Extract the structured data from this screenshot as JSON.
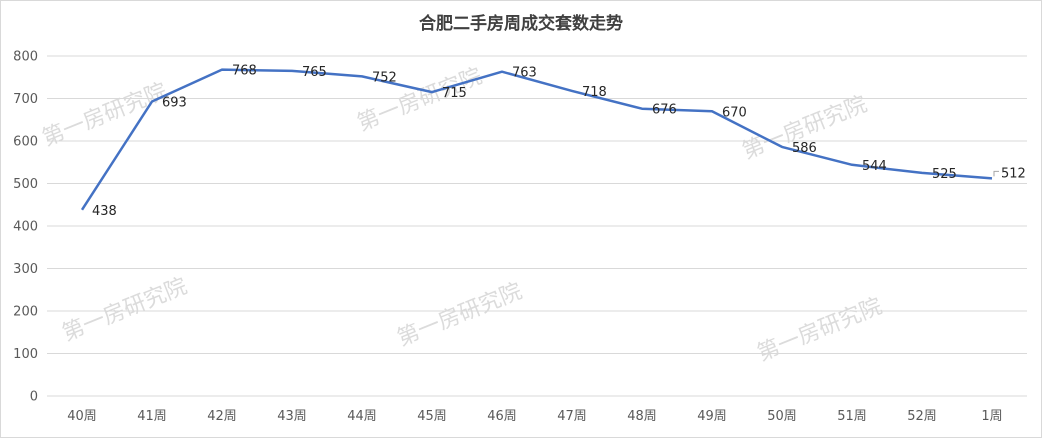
{
  "chart_data": {
    "type": "line",
    "title": "合肥二手房周成交套数走势",
    "categories": [
      "40周",
      "41周",
      "42周",
      "43周",
      "44周",
      "45周",
      "46周",
      "47周",
      "48周",
      "49周",
      "50周",
      "51周",
      "52周",
      "1周"
    ],
    "series": [
      {
        "values": [
          438,
          693,
          768,
          765,
          752,
          715,
          763,
          718,
          676,
          670,
          586,
          544,
          525,
          512
        ],
        "color": "#4472c4"
      }
    ],
    "ylim": [
      0,
      800
    ],
    "yticks": [
      0,
      100,
      200,
      300,
      400,
      500,
      600,
      700,
      800
    ],
    "grid": true,
    "legend": "none"
  },
  "watermark": "第一房研究院"
}
